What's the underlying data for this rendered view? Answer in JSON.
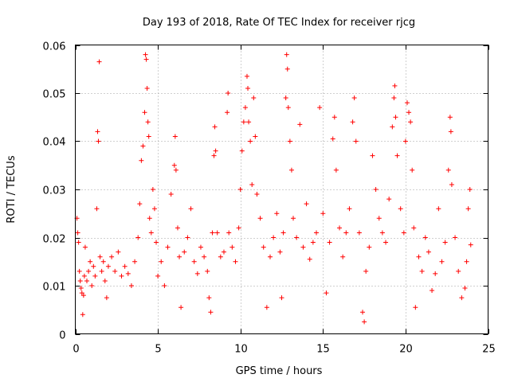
{
  "chart_data": {
    "type": "scatter",
    "title": "Day 193 of 2018, Rate Of TEC Index for receiver rjcg",
    "xlabel": "GPS time / hours",
    "ylabel": "ROTI / TECUs",
    "xlim": [
      0,
      25
    ],
    "ylim": [
      0,
      0.06
    ],
    "x_ticks": [
      0,
      5,
      10,
      15,
      20,
      25
    ],
    "y_ticks": [
      0,
      0.01,
      0.02,
      0.03,
      0.04,
      0.05,
      0.06
    ],
    "x_tick_labels": [
      "0",
      "5",
      "10",
      "15",
      "20",
      "25"
    ],
    "y_tick_labels": [
      "0",
      "0.01",
      "0.02",
      "0.03",
      "0.04",
      "0.05",
      "0.06"
    ],
    "grid": true,
    "marker": "plus",
    "color": "#ff0000",
    "series": [
      {
        "name": "ROTI",
        "points": [
          [
            0.1,
            0.024
          ],
          [
            0.15,
            0.021
          ],
          [
            0.2,
            0.019
          ],
          [
            0.25,
            0.013
          ],
          [
            0.3,
            0.011
          ],
          [
            0.35,
            0.0095
          ],
          [
            0.4,
            0.0085
          ],
          [
            0.45,
            0.004
          ],
          [
            0.5,
            0.008
          ],
          [
            0.55,
            0.012
          ],
          [
            0.6,
            0.018
          ],
          [
            0.7,
            0.011
          ],
          [
            0.8,
            0.013
          ],
          [
            0.9,
            0.015
          ],
          [
            1.0,
            0.01
          ],
          [
            1.1,
            0.014
          ],
          [
            1.2,
            0.012
          ],
          [
            1.3,
            0.026
          ],
          [
            1.35,
            0.042
          ],
          [
            1.4,
            0.04
          ],
          [
            1.45,
            0.0565
          ],
          [
            1.5,
            0.016
          ],
          [
            1.6,
            0.013
          ],
          [
            1.7,
            0.015
          ],
          [
            1.8,
            0.011
          ],
          [
            1.9,
            0.0075
          ],
          [
            2.0,
            0.014
          ],
          [
            2.2,
            0.016
          ],
          [
            2.4,
            0.013
          ],
          [
            2.6,
            0.017
          ],
          [
            2.8,
            0.012
          ],
          [
            3.0,
            0.014
          ],
          [
            3.2,
            0.0125
          ],
          [
            3.4,
            0.01
          ],
          [
            3.6,
            0.015
          ],
          [
            3.8,
            0.02
          ],
          [
            3.9,
            0.027
          ],
          [
            4.0,
            0.036
          ],
          [
            4.1,
            0.039
          ],
          [
            4.2,
            0.046
          ],
          [
            4.25,
            0.058
          ],
          [
            4.3,
            0.057
          ],
          [
            4.35,
            0.051
          ],
          [
            4.4,
            0.044
          ],
          [
            4.45,
            0.041
          ],
          [
            4.5,
            0.024
          ],
          [
            4.6,
            0.021
          ],
          [
            4.7,
            0.03
          ],
          [
            4.8,
            0.026
          ],
          [
            4.9,
            0.019
          ],
          [
            5.0,
            0.012
          ],
          [
            5.2,
            0.015
          ],
          [
            5.4,
            0.01
          ],
          [
            5.6,
            0.018
          ],
          [
            5.8,
            0.029
          ],
          [
            6.0,
            0.035
          ],
          [
            6.05,
            0.041
          ],
          [
            6.1,
            0.034
          ],
          [
            6.2,
            0.022
          ],
          [
            6.3,
            0.016
          ],
          [
            6.4,
            0.0055
          ],
          [
            6.6,
            0.017
          ],
          [
            6.8,
            0.02
          ],
          [
            7.0,
            0.026
          ],
          [
            7.2,
            0.015
          ],
          [
            7.4,
            0.0125
          ],
          [
            7.6,
            0.018
          ],
          [
            7.8,
            0.016
          ],
          [
            8.0,
            0.013
          ],
          [
            8.1,
            0.0075
          ],
          [
            8.2,
            0.0045
          ],
          [
            8.3,
            0.021
          ],
          [
            8.4,
            0.037
          ],
          [
            8.45,
            0.043
          ],
          [
            8.5,
            0.038
          ],
          [
            8.6,
            0.021
          ],
          [
            8.8,
            0.016
          ],
          [
            9.0,
            0.017
          ],
          [
            9.2,
            0.046
          ],
          [
            9.25,
            0.05
          ],
          [
            9.3,
            0.021
          ],
          [
            9.5,
            0.018
          ],
          [
            9.7,
            0.015
          ],
          [
            9.9,
            0.022
          ],
          [
            10.0,
            0.03
          ],
          [
            10.1,
            0.038
          ],
          [
            10.2,
            0.044
          ],
          [
            10.3,
            0.047
          ],
          [
            10.4,
            0.0535
          ],
          [
            10.45,
            0.051
          ],
          [
            10.5,
            0.044
          ],
          [
            10.6,
            0.04
          ],
          [
            10.7,
            0.031
          ],
          [
            10.8,
            0.049
          ],
          [
            10.9,
            0.041
          ],
          [
            11.0,
            0.029
          ],
          [
            11.2,
            0.024
          ],
          [
            11.4,
            0.018
          ],
          [
            11.6,
            0.0055
          ],
          [
            11.8,
            0.016
          ],
          [
            12.0,
            0.02
          ],
          [
            12.2,
            0.025
          ],
          [
            12.4,
            0.017
          ],
          [
            12.5,
            0.0075
          ],
          [
            12.6,
            0.021
          ],
          [
            12.75,
            0.049
          ],
          [
            12.8,
            0.058
          ],
          [
            12.85,
            0.055
          ],
          [
            12.9,
            0.047
          ],
          [
            13.0,
            0.04
          ],
          [
            13.1,
            0.034
          ],
          [
            13.2,
            0.024
          ],
          [
            13.4,
            0.02
          ],
          [
            13.6,
            0.0435
          ],
          [
            13.8,
            0.018
          ],
          [
            14.0,
            0.027
          ],
          [
            14.2,
            0.0155
          ],
          [
            14.4,
            0.019
          ],
          [
            14.6,
            0.021
          ],
          [
            14.8,
            0.047
          ],
          [
            15.0,
            0.025
          ],
          [
            15.2,
            0.0085
          ],
          [
            15.4,
            0.019
          ],
          [
            15.6,
            0.0405
          ],
          [
            15.7,
            0.045
          ],
          [
            15.8,
            0.034
          ],
          [
            16.0,
            0.022
          ],
          [
            16.2,
            0.016
          ],
          [
            16.4,
            0.021
          ],
          [
            16.6,
            0.026
          ],
          [
            16.8,
            0.044
          ],
          [
            16.9,
            0.049
          ],
          [
            17.0,
            0.04
          ],
          [
            17.2,
            0.021
          ],
          [
            17.4,
            0.0045
          ],
          [
            17.5,
            0.0025
          ],
          [
            17.6,
            0.013
          ],
          [
            17.8,
            0.018
          ],
          [
            18.0,
            0.037
          ],
          [
            18.2,
            0.03
          ],
          [
            18.4,
            0.024
          ],
          [
            18.6,
            0.021
          ],
          [
            18.8,
            0.019
          ],
          [
            19.0,
            0.028
          ],
          [
            19.2,
            0.043
          ],
          [
            19.3,
            0.049
          ],
          [
            19.35,
            0.0515
          ],
          [
            19.4,
            0.045
          ],
          [
            19.5,
            0.037
          ],
          [
            19.7,
            0.026
          ],
          [
            19.9,
            0.021
          ],
          [
            20.0,
            0.04
          ],
          [
            20.1,
            0.048
          ],
          [
            20.2,
            0.046
          ],
          [
            20.3,
            0.044
          ],
          [
            20.4,
            0.034
          ],
          [
            20.5,
            0.022
          ],
          [
            20.6,
            0.0055
          ],
          [
            20.8,
            0.016
          ],
          [
            21.0,
            0.013
          ],
          [
            21.2,
            0.02
          ],
          [
            21.4,
            0.017
          ],
          [
            21.6,
            0.009
          ],
          [
            21.8,
            0.0125
          ],
          [
            22.0,
            0.026
          ],
          [
            22.2,
            0.015
          ],
          [
            22.4,
            0.019
          ],
          [
            22.6,
            0.034
          ],
          [
            22.7,
            0.045
          ],
          [
            22.75,
            0.042
          ],
          [
            22.8,
            0.031
          ],
          [
            23.0,
            0.02
          ],
          [
            23.2,
            0.013
          ],
          [
            23.4,
            0.0075
          ],
          [
            23.6,
            0.0095
          ],
          [
            23.7,
            0.015
          ],
          [
            23.8,
            0.026
          ],
          [
            23.9,
            0.03
          ],
          [
            23.95,
            0.0185
          ]
        ]
      }
    ]
  }
}
